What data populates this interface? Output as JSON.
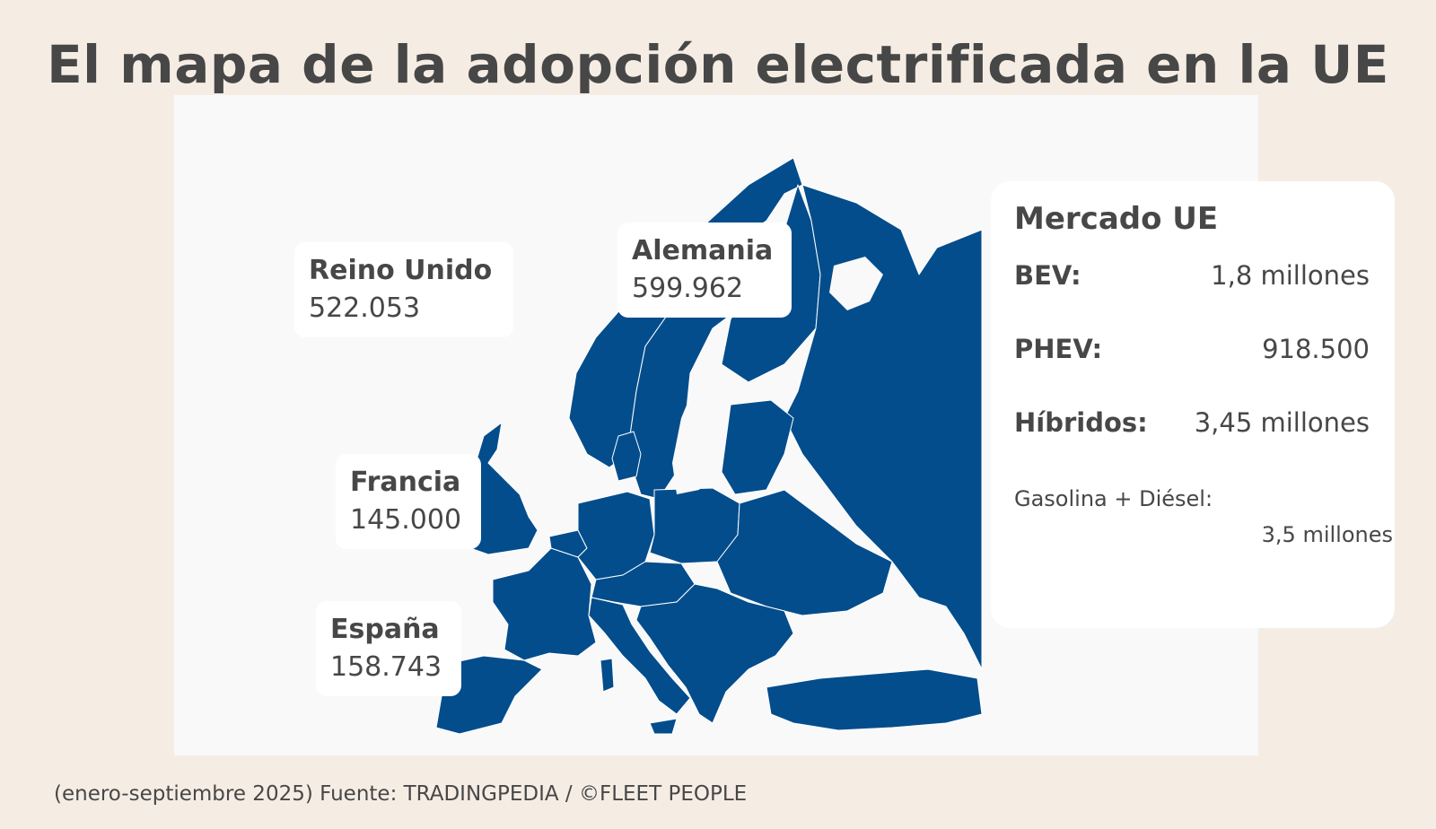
{
  "title": "El mapa de la adopción electrificada en la UE",
  "map": {
    "fill_color": "#034d8c",
    "border_color": "#ffffff",
    "background": "#f9f9f9"
  },
  "country_labels": [
    {
      "name": "Reino Unido",
      "value": "522.053"
    },
    {
      "name": "Alemania",
      "value": "599.962"
    },
    {
      "name": "Francia",
      "value": "145.000"
    },
    {
      "name": "España",
      "value": "158.743"
    }
  ],
  "market": {
    "title": "Mercado UE",
    "rows": [
      {
        "label": "BEV:",
        "value": "1,8 millones"
      },
      {
        "label": "PHEV:",
        "value": "918.500"
      },
      {
        "label": "Híbridos:",
        "value": "3,45 millones"
      }
    ],
    "fuel_label": "Gasolina + Diésel:",
    "fuel_value": "3,5 millones"
  },
  "footer": "(enero-septiembre 2025) Fuente: TRADINGPEDIA / ©FLEET PEOPLE",
  "colors": {
    "page_background": "#f5ede4",
    "text": "#474747",
    "card": "#ffffff"
  }
}
